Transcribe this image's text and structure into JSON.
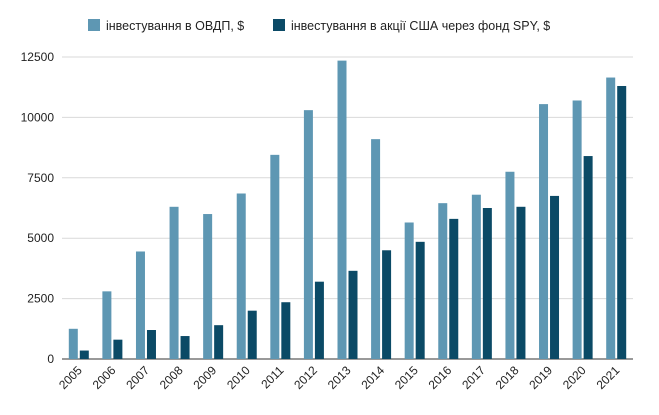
{
  "chart_data": {
    "type": "bar",
    "title": "",
    "xlabel": "",
    "ylabel": "",
    "ylim": [
      0,
      12500
    ],
    "yticks": [
      0,
      2500,
      5000,
      7500,
      10000,
      12500
    ],
    "grid": "horizontal",
    "legend_position": "top",
    "categories": [
      "2005",
      "2006",
      "2007",
      "2008",
      "2009",
      "2010",
      "2011",
      "2012",
      "2013",
      "2014",
      "2015",
      "2016",
      "2017",
      "2018",
      "2019",
      "2020",
      "2021"
    ],
    "series": [
      {
        "name": "інвестування в ОВДП, $",
        "color": "#5e97b3",
        "values": [
          1250,
          2800,
          4450,
          6300,
          6000,
          6850,
          8450,
          10300,
          12350,
          9100,
          5650,
          6450,
          6800,
          7750,
          10550,
          10700,
          11650
        ]
      },
      {
        "name": "інвестування в акції США через фонд SPY, $",
        "color": "#0b4a66",
        "values": [
          350,
          800,
          1200,
          950,
          1400,
          2000,
          2350,
          3200,
          3650,
          4500,
          4850,
          5800,
          6250,
          6300,
          6750,
          8400,
          11300
        ]
      }
    ]
  }
}
